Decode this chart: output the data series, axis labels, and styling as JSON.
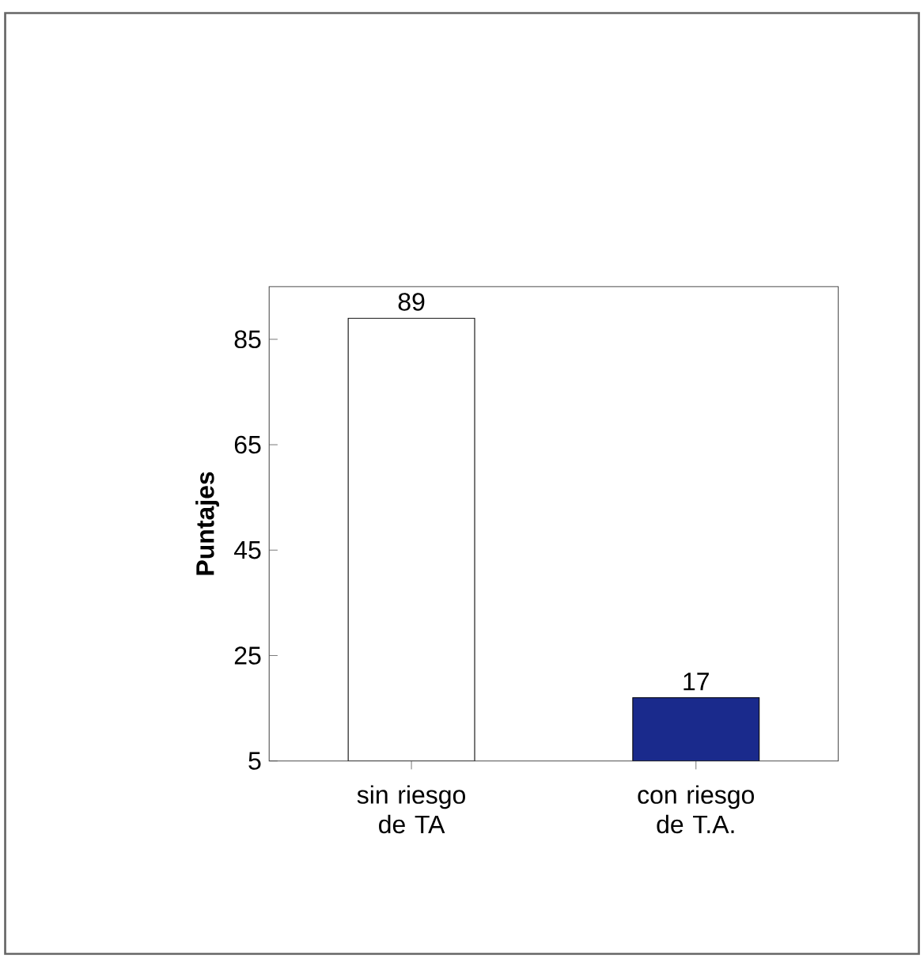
{
  "chart_data": {
    "type": "bar",
    "ylabel": "Puntajes",
    "categories": [
      "sin riesgo de TA",
      "con riesgo de T.A."
    ],
    "values": [
      89,
      17
    ],
    "colors": [
      "#ffffff",
      "#1a2a8c"
    ],
    "ylim": [
      5,
      95
    ],
    "yticks": [
      5,
      25,
      45,
      65,
      85
    ],
    "data_labels": true
  }
}
